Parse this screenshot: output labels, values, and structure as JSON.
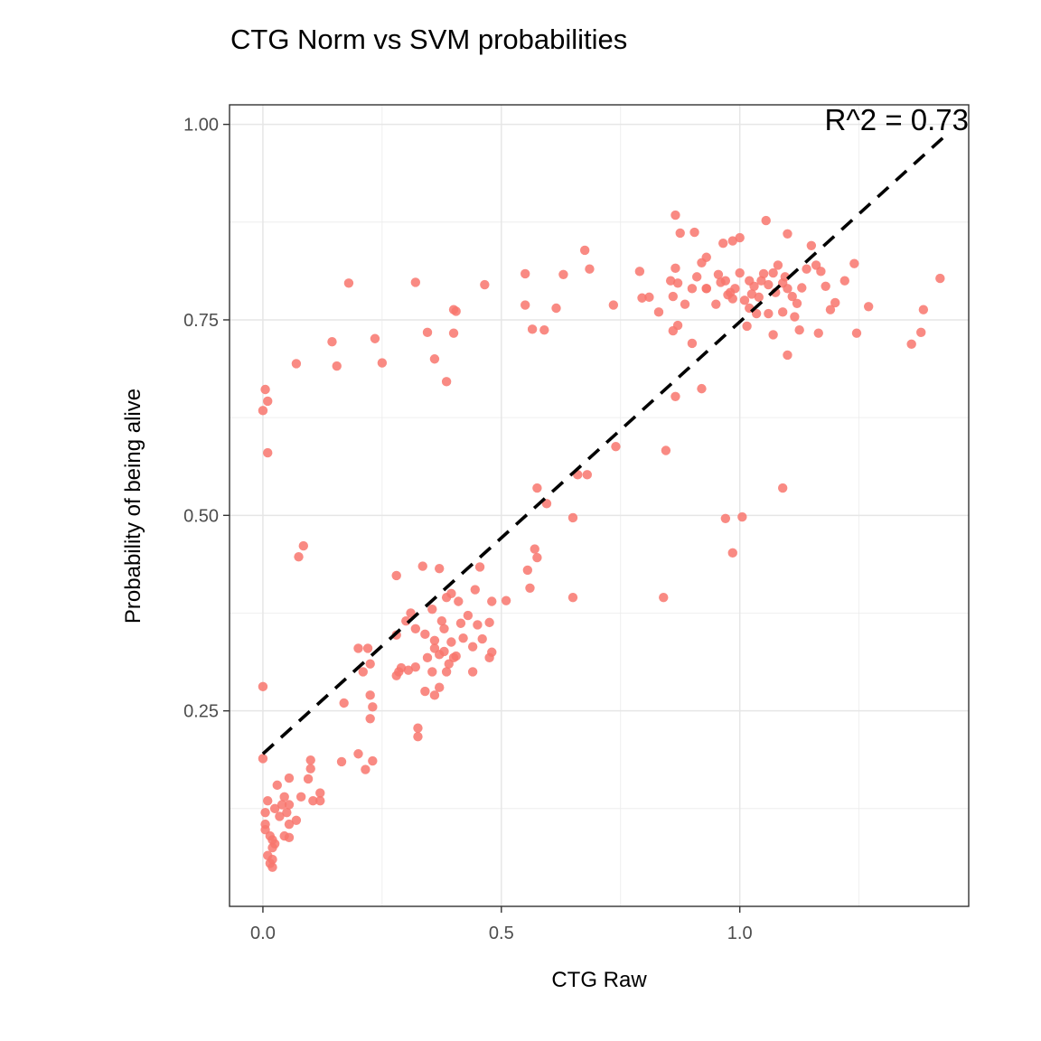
{
  "chart_data": {
    "type": "scatter",
    "title": "CTG Norm vs SVM probabilities",
    "xlabel": "CTG Raw",
    "ylabel": "Probability of being alive",
    "xlim": [
      -0.07,
      1.48
    ],
    "ylim": [
      0.0,
      1.025
    ],
    "x_ticks": [
      0.0,
      0.5,
      1.0
    ],
    "x_tick_labels": [
      "0.0",
      "0.5",
      "1.0"
    ],
    "y_ticks": [
      0.25,
      0.5,
      0.75,
      1.0
    ],
    "y_tick_labels": [
      "0.25",
      "0.50",
      "0.75",
      "1.00"
    ],
    "grid": true,
    "legend": "none",
    "point_color": "#f8766d",
    "annotation": "R^2 = 0.73",
    "fit_line": {
      "x": [
        0.0,
        1.43
      ],
      "y": [
        0.195,
        0.985
      ],
      "style": "dashed",
      "color": "#000000"
    },
    "series": [
      {
        "points": [
          [
            0.0,
            0.634
          ],
          [
            0.005,
            0.661
          ],
          [
            0.01,
            0.646
          ],
          [
            0.01,
            0.58
          ],
          [
            0.0,
            0.281
          ],
          [
            0.0,
            0.189
          ],
          [
            0.07,
            0.694
          ],
          [
            0.145,
            0.722
          ],
          [
            0.155,
            0.691
          ],
          [
            0.18,
            0.797
          ],
          [
            0.235,
            0.726
          ],
          [
            0.25,
            0.695
          ],
          [
            0.32,
            0.798
          ],
          [
            0.345,
            0.734
          ],
          [
            0.36,
            0.7
          ],
          [
            0.385,
            0.671
          ],
          [
            0.4,
            0.763
          ],
          [
            0.4,
            0.733
          ],
          [
            0.405,
            0.761
          ],
          [
            0.465,
            0.795
          ],
          [
            0.55,
            0.809
          ],
          [
            0.55,
            0.769
          ],
          [
            0.565,
            0.738
          ],
          [
            0.59,
            0.737
          ],
          [
            0.615,
            0.765
          ],
          [
            0.63,
            0.808
          ],
          [
            0.675,
            0.839
          ],
          [
            0.685,
            0.815
          ],
          [
            0.735,
            0.769
          ],
          [
            0.68,
            0.552
          ],
          [
            0.74,
            0.588
          ],
          [
            0.595,
            0.515
          ],
          [
            0.575,
            0.535
          ],
          [
            0.66,
            0.552
          ],
          [
            0.65,
            0.497
          ],
          [
            0.65,
            0.395
          ],
          [
            0.085,
            0.461
          ],
          [
            0.075,
            0.447
          ],
          [
            0.555,
            0.43
          ],
          [
            0.57,
            0.457
          ],
          [
            0.575,
            0.446
          ],
          [
            0.56,
            0.407
          ],
          [
            0.28,
            0.423
          ],
          [
            0.335,
            0.435
          ],
          [
            0.37,
            0.432
          ],
          [
            0.31,
            0.375
          ],
          [
            0.355,
            0.38
          ],
          [
            0.385,
            0.395
          ],
          [
            0.395,
            0.4
          ],
          [
            0.41,
            0.39
          ],
          [
            0.445,
            0.405
          ],
          [
            0.455,
            0.434
          ],
          [
            0.48,
            0.39
          ],
          [
            0.51,
            0.391
          ],
          [
            0.3,
            0.365
          ],
          [
            0.32,
            0.355
          ],
          [
            0.34,
            0.348
          ],
          [
            0.36,
            0.34
          ],
          [
            0.375,
            0.365
          ],
          [
            0.38,
            0.355
          ],
          [
            0.395,
            0.338
          ],
          [
            0.415,
            0.362
          ],
          [
            0.43,
            0.372
          ],
          [
            0.45,
            0.36
          ],
          [
            0.475,
            0.363
          ],
          [
            0.28,
            0.347
          ],
          [
            0.29,
            0.305
          ],
          [
            0.305,
            0.302
          ],
          [
            0.32,
            0.306
          ],
          [
            0.345,
            0.318
          ],
          [
            0.36,
            0.33
          ],
          [
            0.37,
            0.322
          ],
          [
            0.38,
            0.326
          ],
          [
            0.4,
            0.318
          ],
          [
            0.405,
            0.32
          ],
          [
            0.42,
            0.343
          ],
          [
            0.44,
            0.332
          ],
          [
            0.46,
            0.342
          ],
          [
            0.475,
            0.318
          ],
          [
            0.48,
            0.325
          ],
          [
            0.355,
            0.3
          ],
          [
            0.37,
            0.28
          ],
          [
            0.385,
            0.3
          ],
          [
            0.39,
            0.31
          ],
          [
            0.44,
            0.3
          ],
          [
            0.34,
            0.275
          ],
          [
            0.36,
            0.27
          ],
          [
            0.28,
            0.295
          ],
          [
            0.285,
            0.3
          ],
          [
            0.2,
            0.33
          ],
          [
            0.22,
            0.33
          ],
          [
            0.225,
            0.31
          ],
          [
            0.21,
            0.3
          ],
          [
            0.17,
            0.26
          ],
          [
            0.225,
            0.27
          ],
          [
            0.23,
            0.255
          ],
          [
            0.225,
            0.24
          ],
          [
            0.325,
            0.228
          ],
          [
            0.325,
            0.217
          ],
          [
            0.2,
            0.195
          ],
          [
            0.23,
            0.186
          ],
          [
            0.215,
            0.175
          ],
          [
            0.165,
            0.185
          ],
          [
            0.1,
            0.187
          ],
          [
            0.1,
            0.176
          ],
          [
            0.095,
            0.163
          ],
          [
            0.055,
            0.164
          ],
          [
            0.03,
            0.155
          ],
          [
            0.12,
            0.145
          ],
          [
            0.12,
            0.135
          ],
          [
            0.105,
            0.135
          ],
          [
            0.08,
            0.14
          ],
          [
            0.07,
            0.11
          ],
          [
            0.05,
            0.12
          ],
          [
            0.055,
            0.13
          ],
          [
            0.045,
            0.14
          ],
          [
            0.04,
            0.13
          ],
          [
            0.055,
            0.105
          ],
          [
            0.035,
            0.115
          ],
          [
            0.025,
            0.125
          ],
          [
            0.01,
            0.135
          ],
          [
            0.005,
            0.12
          ],
          [
            0.005,
            0.105
          ],
          [
            0.005,
            0.098
          ],
          [
            0.015,
            0.09
          ],
          [
            0.02,
            0.085
          ],
          [
            0.025,
            0.08
          ],
          [
            0.02,
            0.075
          ],
          [
            0.01,
            0.065
          ],
          [
            0.02,
            0.06
          ],
          [
            0.015,
            0.055
          ],
          [
            0.02,
            0.05
          ],
          [
            0.045,
            0.09
          ],
          [
            0.055,
            0.088
          ],
          [
            0.84,
            0.395
          ],
          [
            0.845,
            0.583
          ],
          [
            0.97,
            0.496
          ],
          [
            1.005,
            0.498
          ],
          [
            0.985,
            0.452
          ],
          [
            1.09,
            0.535
          ],
          [
            0.865,
            0.652
          ],
          [
            0.92,
            0.662
          ],
          [
            0.865,
            0.884
          ],
          [
            0.875,
            0.861
          ],
          [
            0.905,
            0.862
          ],
          [
            0.93,
            0.83
          ],
          [
            0.965,
            0.848
          ],
          [
            0.985,
            0.851
          ],
          [
            1.0,
            0.855
          ],
          [
            1.055,
            0.877
          ],
          [
            1.1,
            0.86
          ],
          [
            0.79,
            0.812
          ],
          [
            0.795,
            0.778
          ],
          [
            0.81,
            0.779
          ],
          [
            0.83,
            0.76
          ],
          [
            0.855,
            0.8
          ],
          [
            0.86,
            0.78
          ],
          [
            0.865,
            0.816
          ],
          [
            0.87,
            0.797
          ],
          [
            0.885,
            0.77
          ],
          [
            0.9,
            0.79
          ],
          [
            0.91,
            0.805
          ],
          [
            0.92,
            0.823
          ],
          [
            0.93,
            0.79
          ],
          [
            0.95,
            0.77
          ],
          [
            0.96,
            0.798
          ],
          [
            0.97,
            0.8
          ],
          [
            0.975,
            0.782
          ],
          [
            0.985,
            0.777
          ],
          [
            0.99,
            0.79
          ],
          [
            1.0,
            0.81
          ],
          [
            1.01,
            0.775
          ],
          [
            1.02,
            0.8
          ],
          [
            1.03,
            0.793
          ],
          [
            1.04,
            0.779
          ],
          [
            1.05,
            0.809
          ],
          [
            1.06,
            0.795
          ],
          [
            1.07,
            0.81
          ],
          [
            1.08,
            0.82
          ],
          [
            1.09,
            0.797
          ],
          [
            1.1,
            0.79
          ],
          [
            1.11,
            0.78
          ],
          [
            1.12,
            0.771
          ],
          [
            1.13,
            0.791
          ],
          [
            1.14,
            0.815
          ],
          [
            1.15,
            0.845
          ],
          [
            1.16,
            0.82
          ],
          [
            1.17,
            0.812
          ],
          [
            1.18,
            0.793
          ],
          [
            1.19,
            0.763
          ],
          [
            1.2,
            0.772
          ],
          [
            1.22,
            0.8
          ],
          [
            1.24,
            0.822
          ],
          [
            1.245,
            0.733
          ],
          [
            1.27,
            0.767
          ],
          [
            1.36,
            0.719
          ],
          [
            1.38,
            0.734
          ],
          [
            1.385,
            0.763
          ],
          [
            1.42,
            0.803
          ],
          [
            1.165,
            0.733
          ],
          [
            1.1,
            0.705
          ],
          [
            1.125,
            0.737
          ],
          [
            1.07,
            0.731
          ],
          [
            1.02,
            0.765
          ],
          [
            1.015,
            0.742
          ],
          [
            1.035,
            0.758
          ],
          [
            1.06,
            0.758
          ],
          [
            1.09,
            0.76
          ],
          [
            1.115,
            0.754
          ],
          [
            0.9,
            0.72
          ],
          [
            0.87,
            0.743
          ],
          [
            0.86,
            0.736
          ],
          [
            0.93,
            0.79
          ],
          [
            0.955,
            0.808
          ],
          [
            0.98,
            0.785
          ],
          [
            1.025,
            0.783
          ],
          [
            1.045,
            0.8
          ],
          [
            1.075,
            0.785
          ],
          [
            1.095,
            0.805
          ]
        ]
      }
    ]
  }
}
